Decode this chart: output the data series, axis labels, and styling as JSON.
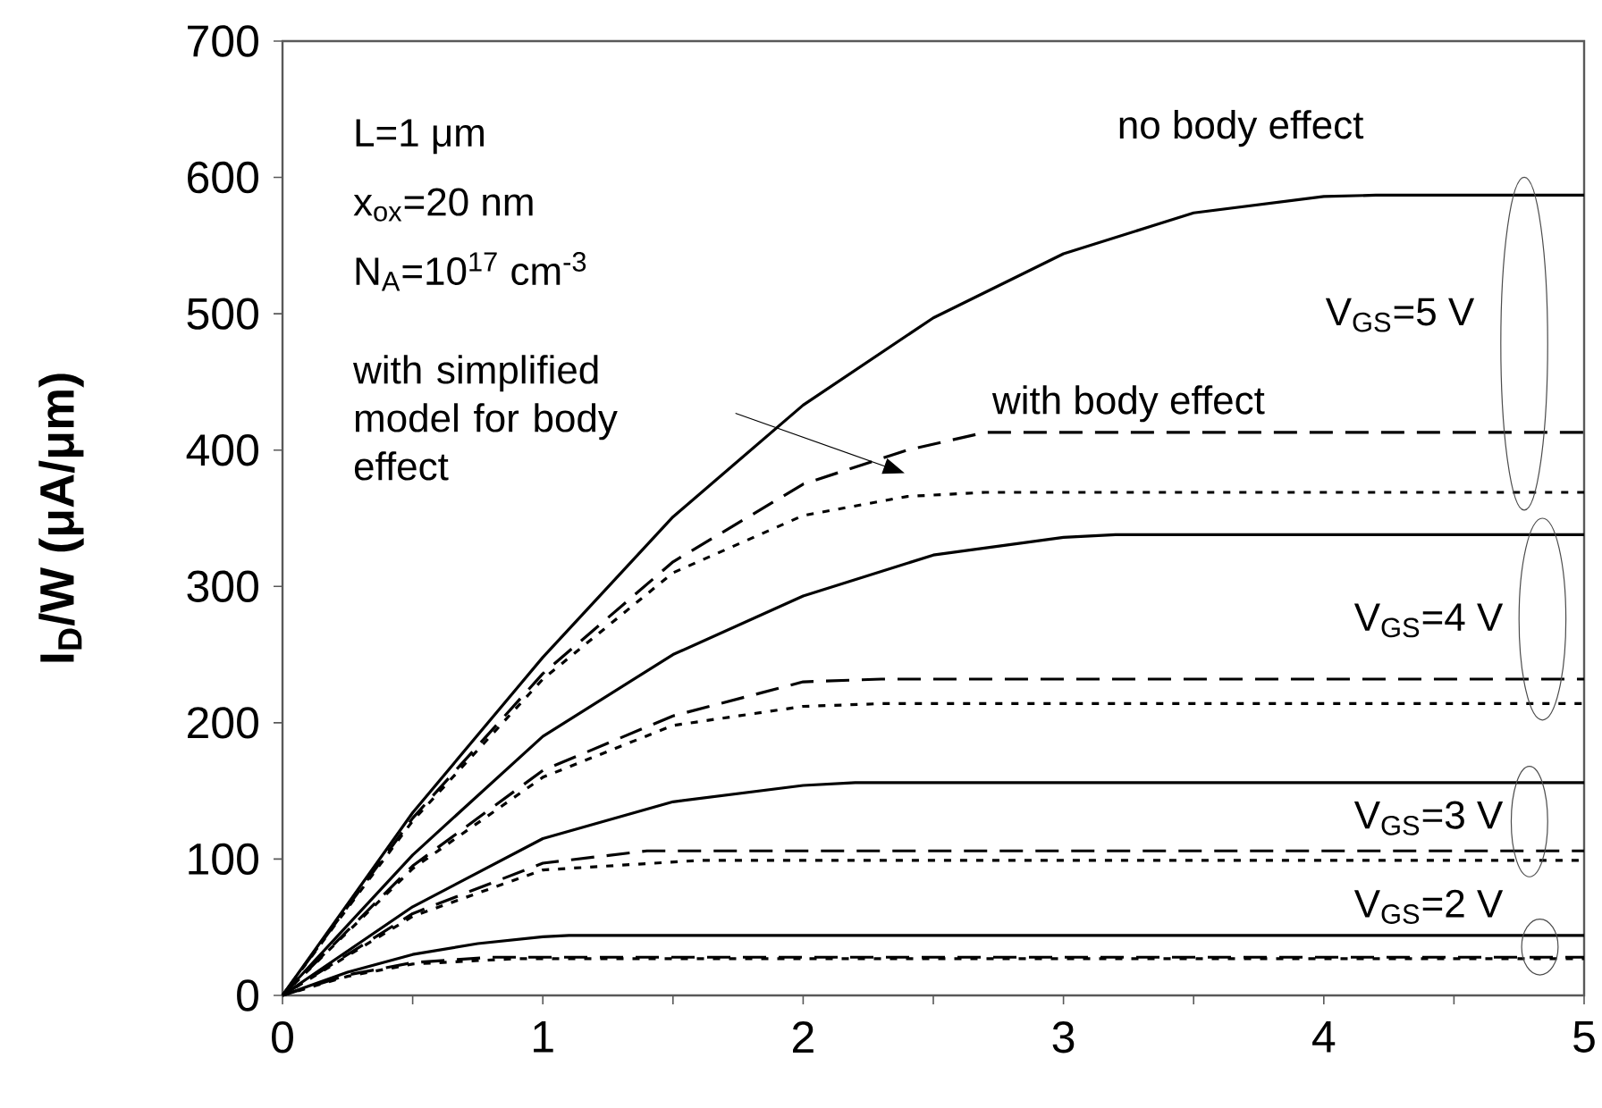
{
  "chart_data": {
    "type": "line",
    "ylabel": "I$_{D}$/W (μA/μm)",
    "xlim": [
      0,
      5
    ],
    "ylim": [
      0,
      700
    ],
    "xticks": [
      0,
      {
        "value": 0.5,
        "label": null
      },
      1,
      {
        "value": 1.5,
        "label": null
      },
      2,
      {
        "value": 2.5,
        "label": null
      },
      3,
      {
        "value": 3.5,
        "label": null
      },
      4,
      {
        "value": 4.5,
        "label": null
      },
      5
    ],
    "yticks": [
      0,
      100,
      200,
      300,
      400,
      500,
      600,
      700
    ],
    "grid": false,
    "annotations": [
      "L=1 μm",
      "x$_{ox}$=20 nm",
      "N$_{A}$=10$^{17}$ cm$^{-3}$",
      "no body effect",
      "with body effect",
      "with simplified model for body effect",
      "V$_{GS}$=5 V",
      "V$_{GS}$=4 V",
      "V$_{GS}$=3 V",
      "V$_{GS}$=2 V"
    ],
    "series": [
      {
        "color": "#000000",
        "line_style": "solid",
        "x": [
          0,
          0.5,
          1,
          1.5,
          2,
          2.5,
          3,
          3.5,
          4,
          4.2,
          5
        ],
        "values": [
          0,
          134,
          248,
          351,
          433,
          497,
          544,
          574,
          586,
          587,
          587
        ]
      },
      {
        "color": "#000000",
        "line_style": "dashed",
        "x": [
          0,
          0.5,
          1,
          1.5,
          2,
          2.4,
          2.7,
          5
        ],
        "values": [
          0,
          130,
          236,
          318,
          375,
          400,
          413,
          413
        ]
      },
      {
        "color": "#000000",
        "line_style": "dotted",
        "x": [
          0,
          0.5,
          1,
          1.5,
          2,
          2.4,
          2.7,
          5
        ],
        "values": [
          0,
          128,
          232,
          310,
          352,
          366,
          369,
          369
        ]
      },
      {
        "color": "#000000",
        "line_style": "solid",
        "x": [
          0,
          0.5,
          1,
          1.5,
          2,
          2.5,
          3,
          3.2,
          5
        ],
        "values": [
          0,
          103,
          190,
          250,
          293,
          323,
          336,
          338,
          338
        ]
      },
      {
        "color": "#000000",
        "line_style": "dashed",
        "x": [
          0,
          0.5,
          1,
          1.5,
          2,
          2.3,
          5
        ],
        "values": [
          0,
          95,
          165,
          205,
          230,
          232,
          232
        ]
      },
      {
        "color": "#000000",
        "line_style": "dotted",
        "x": [
          0,
          0.5,
          1,
          1.5,
          2,
          2.3,
          5
        ],
        "values": [
          0,
          93,
          160,
          198,
          212,
          214,
          214
        ]
      },
      {
        "color": "#000000",
        "line_style": "solid",
        "x": [
          0,
          0.5,
          1,
          1.5,
          2,
          2.2,
          5
        ],
        "values": [
          0,
          65,
          115,
          142,
          154,
          156,
          156
        ]
      },
      {
        "color": "#000000",
        "line_style": "dashed",
        "x": [
          0,
          0.5,
          1,
          1.4,
          5
        ],
        "values": [
          0,
          60,
          97,
          106,
          106
        ]
      },
      {
        "color": "#000000",
        "line_style": "dotted",
        "x": [
          0,
          0.5,
          1,
          1.6,
          5
        ],
        "values": [
          0,
          58,
          92,
          99,
          99
        ]
      },
      {
        "color": "#000000",
        "line_style": "solid",
        "x": [
          0,
          0.25,
          0.5,
          0.75,
          1,
          1.1,
          5
        ],
        "values": [
          0,
          17,
          30,
          38,
          43,
          44,
          44
        ]
      },
      {
        "color": "#000000",
        "line_style": "dashed",
        "x": [
          0,
          0.25,
          0.5,
          0.8,
          5
        ],
        "values": [
          0,
          15,
          24,
          28,
          28
        ]
      },
      {
        "color": "#000000",
        "line_style": "dotted",
        "x": [
          0,
          0.25,
          0.5,
          0.9,
          5
        ],
        "values": [
          0,
          14,
          23,
          27,
          27
        ]
      }
    ]
  }
}
